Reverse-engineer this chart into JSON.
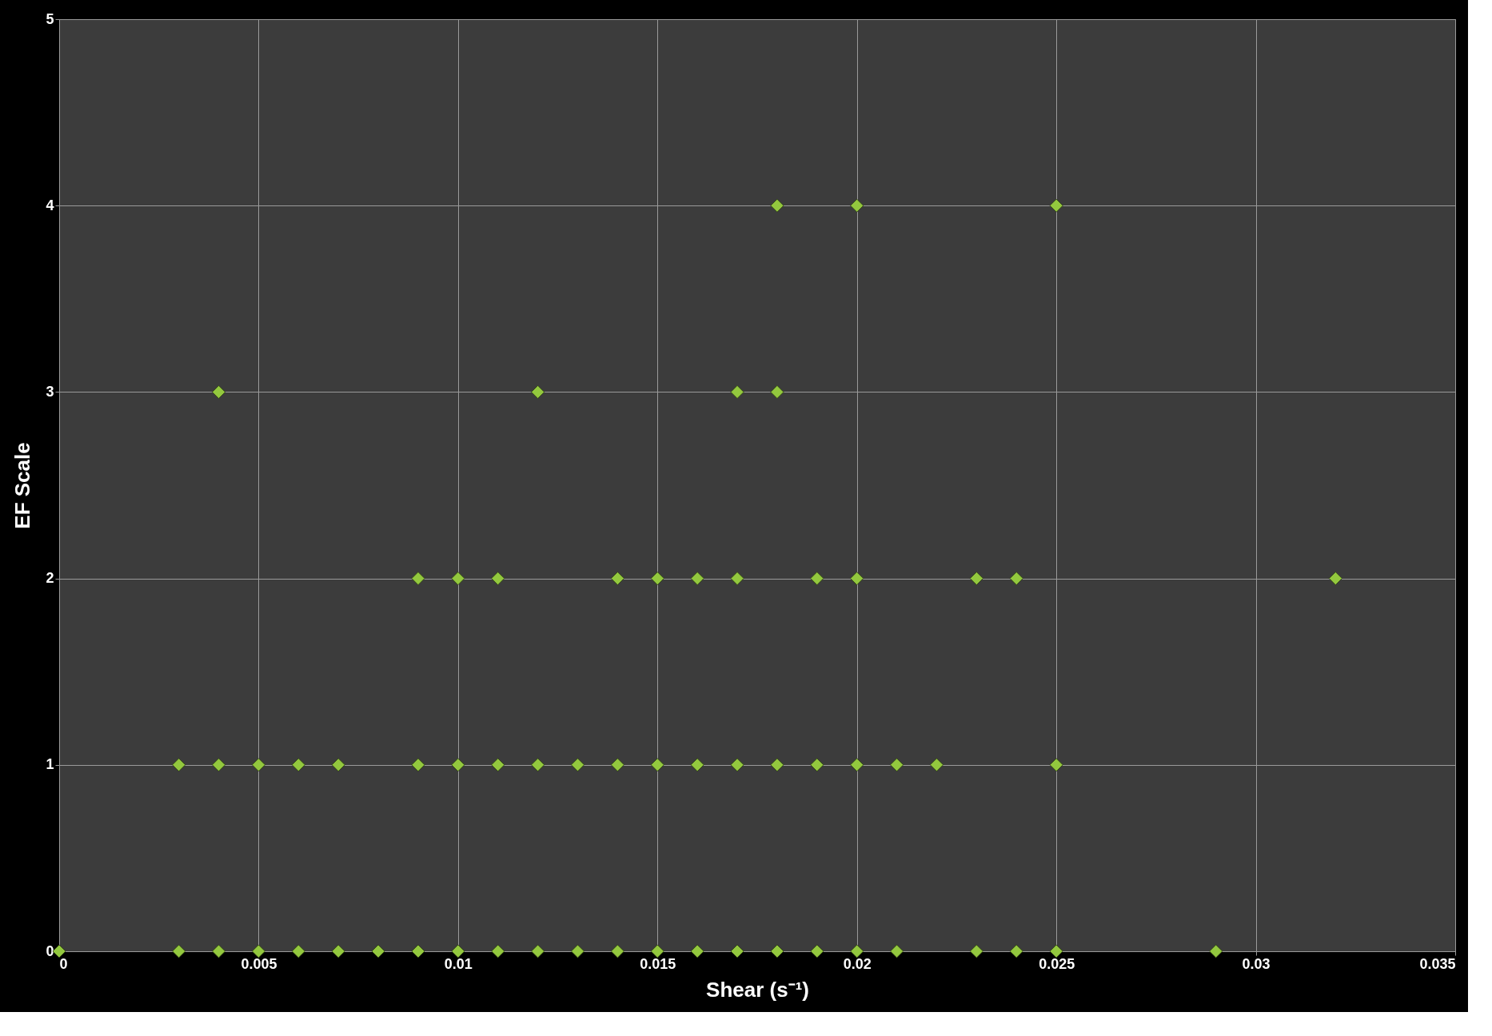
{
  "chart_data": {
    "type": "scatter",
    "xlabel": "Shear (s⁻¹)",
    "ylabel": "EF Scale",
    "x": [
      0.018,
      0.02,
      0.025,
      0.004,
      0.012,
      0.017,
      0.018,
      0.009,
      0.01,
      0.011,
      0.014,
      0.015,
      0.016,
      0.017,
      0.019,
      0.02,
      0.023,
      0.024,
      0.032,
      0.003,
      0.004,
      0.005,
      0.006,
      0.007,
      0.009,
      0.01,
      0.011,
      0.012,
      0.013,
      0.014,
      0.015,
      0.016,
      0.017,
      0.018,
      0.019,
      0.02,
      0.021,
      0.022,
      0.025,
      0,
      0.003,
      0.004,
      0.005,
      0.006,
      0.007,
      0.008,
      0.009,
      0.01,
      0.011,
      0.012,
      0.013,
      0.014,
      0.015,
      0.016,
      0.017,
      0.018,
      0.019,
      0.02,
      0.021,
      0.023,
      0.024,
      0.025,
      0.029
    ],
    "series": [
      {
        "color": "#93c83e",
        "values": [
          4,
          4,
          4,
          3,
          3,
          3,
          3,
          2,
          2,
          2,
          2,
          2,
          2,
          2,
          2,
          2,
          2,
          2,
          2,
          1,
          1,
          1,
          1,
          1,
          1,
          1,
          1,
          1,
          1,
          1,
          1,
          1,
          1,
          1,
          1,
          1,
          1,
          1,
          1,
          0,
          0,
          0,
          0,
          0,
          0,
          0,
          0,
          0,
          0,
          0,
          0,
          0,
          0,
          0,
          0,
          0,
          0,
          0,
          0,
          0,
          0,
          0,
          0
        ]
      }
    ],
    "xlim": [
      0,
      0.035
    ],
    "xticks": [
      0,
      0.005,
      0.01,
      0.015,
      0.02,
      0.025,
      0.03,
      0.035
    ],
    "ylim": [
      0,
      5
    ],
    "yticks": [
      0,
      1,
      2,
      3,
      4,
      5
    ],
    "grid": true,
    "marker": "diamond"
  }
}
